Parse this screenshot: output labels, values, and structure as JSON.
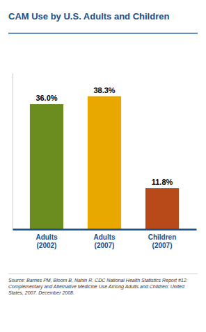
{
  "chart_data": {
    "type": "bar",
    "title": "CAM Use by U.S. Adults and Children",
    "categories": [
      "Adults\n(2002)",
      "Adults\n(2007)",
      "Children\n(2007)"
    ],
    "values": [
      36.0,
      38.3,
      11.8
    ],
    "value_labels": [
      "36.0%",
      "38.3%",
      "11.8%"
    ],
    "data_labels": true,
    "colors": [
      "#6b8c1e",
      "#e8a800",
      "#b84a1a"
    ],
    "ylim": [
      0,
      45
    ],
    "tick_labels": "x",
    "grid": false,
    "annotations": [
      "Source: Barnes PM, Bloom B, Nahin R. CDC National Health Statistics Report #12.\nComplementary and Alternative Medicine Use Among Adults and Children: United\nStates, 2007. December 2008."
    ]
  }
}
